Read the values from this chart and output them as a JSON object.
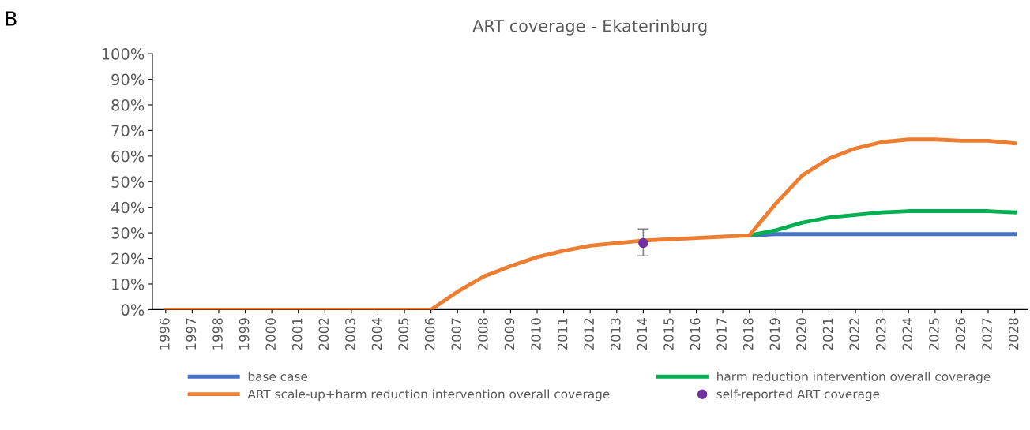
{
  "chart_data": {
    "type": "line",
    "title": "ART coverage - Ekaterinburg",
    "annotations": [
      "B"
    ],
    "categories": [
      "1996",
      "1997",
      "1998",
      "1999",
      "2000",
      "2001",
      "2002",
      "2003",
      "2004",
      "2005",
      "2006",
      "2007",
      "2008",
      "2009",
      "2010",
      "2011",
      "2012",
      "2013",
      "2014",
      "2015",
      "2016",
      "2017",
      "2018",
      "2019",
      "2020",
      "2021",
      "2022",
      "2023",
      "2024",
      "2025",
      "2026",
      "2027",
      "2028"
    ],
    "series": [
      {
        "name": "base case",
        "color": "#4472c4",
        "values": [
          null,
          null,
          null,
          null,
          null,
          null,
          null,
          null,
          null,
          null,
          null,
          null,
          null,
          null,
          null,
          null,
          null,
          null,
          null,
          null,
          null,
          null,
          29,
          29.5,
          29.5,
          29.5,
          29.5,
          29.5,
          29.5,
          29.5,
          29.5,
          29.5,
          29.5
        ]
      },
      {
        "name": "harm reduction intervention overall coverage",
        "color": "#00b050",
        "values": [
          null,
          null,
          null,
          null,
          null,
          null,
          null,
          null,
          null,
          null,
          null,
          null,
          null,
          null,
          null,
          null,
          null,
          null,
          null,
          null,
          null,
          null,
          29,
          31,
          34,
          36,
          37,
          38,
          38.5,
          38.5,
          38.5,
          38.5,
          38
        ]
      },
      {
        "name": "ART scale-up+harm reduction intervention overall coverage",
        "color": "#ed7d31",
        "values": [
          0,
          0,
          0,
          0,
          0,
          0,
          0,
          0,
          0,
          0,
          0,
          7,
          13,
          17,
          20.5,
          23,
          25,
          26,
          27,
          27.5,
          28,
          28.5,
          29,
          41.5,
          52.5,
          59,
          63,
          65.5,
          66.5,
          66.5,
          66,
          66,
          65
        ]
      },
      {
        "name": "self-reported ART coverage",
        "type": "scatter",
        "color": "#7030a0",
        "marker": "circle",
        "values": [
          null,
          null,
          null,
          null,
          null,
          null,
          null,
          null,
          null,
          null,
          null,
          null,
          null,
          null,
          null,
          null,
          null,
          null,
          26,
          null,
          null,
          null,
          null,
          null,
          null,
          null,
          null,
          null,
          null,
          null,
          null,
          null,
          null
        ],
        "errors": [
          null,
          null,
          null,
          null,
          null,
          null,
          null,
          null,
          null,
          null,
          null,
          null,
          null,
          null,
          null,
          null,
          null,
          null,
          [
            21,
            31.5
          ],
          null,
          null,
          null,
          null,
          null,
          null,
          null,
          null,
          null,
          null,
          null,
          null,
          null,
          null
        ]
      }
    ],
    "ylim": [
      0,
      100
    ],
    "yticks": [
      {
        "value": 0,
        "label": "0%"
      },
      {
        "value": 10,
        "label": "10%"
      },
      {
        "value": 20,
        "label": "20%"
      },
      {
        "value": 30,
        "label": "30%"
      },
      {
        "value": 40,
        "label": "40%"
      },
      {
        "value": 50,
        "label": "50%"
      },
      {
        "value": 60,
        "label": "60%"
      },
      {
        "value": 70,
        "label": "70%"
      },
      {
        "value": 80,
        "label": "80%"
      },
      {
        "value": 90,
        "label": "90%"
      },
      {
        "value": 100,
        "label": "100%"
      }
    ],
    "grid": false,
    "legend": "bottom"
  }
}
